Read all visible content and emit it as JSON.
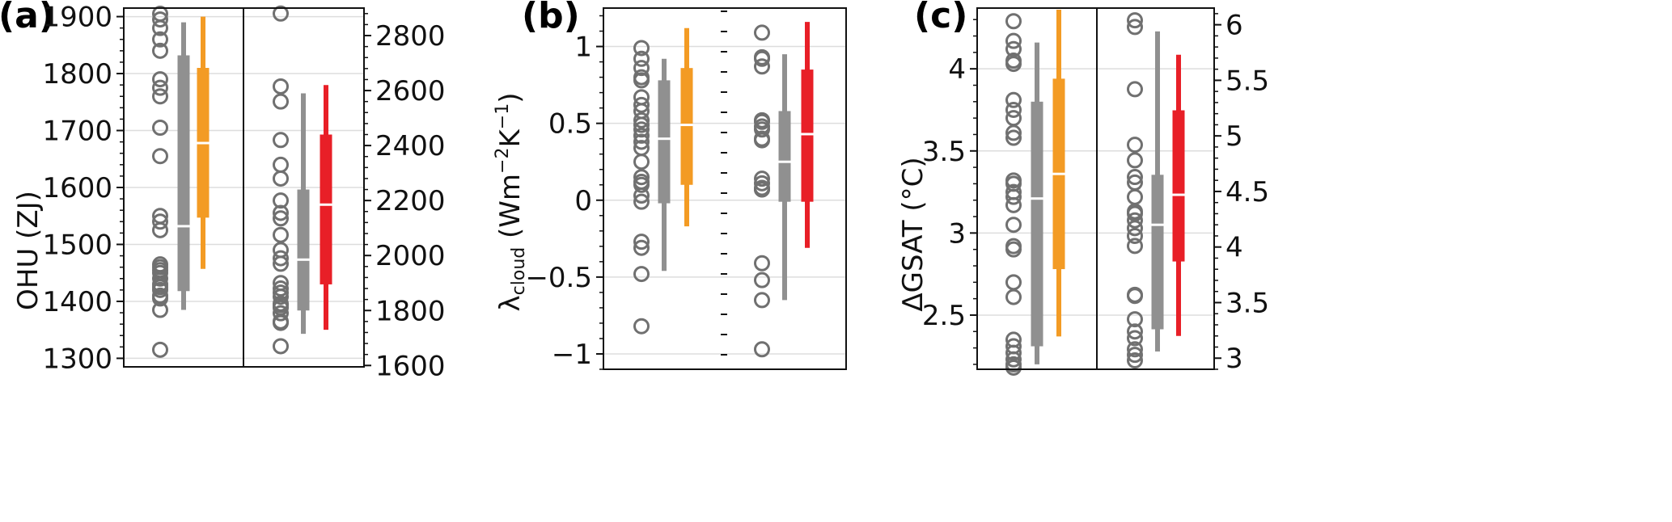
{
  "chart_data": [
    {
      "type": "box",
      "panel_label": "(a)",
      "ylabel": "OHU (ZJ)",
      "left_axis": {
        "ylim": [
          1285,
          1915
        ],
        "ticks": [
          1300,
          1400,
          1500,
          1600,
          1700,
          1800,
          1900
        ],
        "labels": [
          "1300",
          "1400",
          "1500",
          "1600",
          "1700",
          "1800",
          "1900"
        ]
      },
      "right_axis": {
        "ylim": [
          1595,
          2900
        ],
        "ticks": [
          1600,
          1800,
          2000,
          2200,
          2400,
          2600,
          2800
        ],
        "labels": [
          "1600",
          "1800",
          "2000",
          "2200",
          "2400",
          "2600",
          "2800"
        ]
      },
      "subpanels": [
        {
          "axis": "left",
          "points": [
            1905,
            1895,
            1880,
            1860,
            1840,
            1790,
            1775,
            1760,
            1705,
            1655,
            1550,
            1540,
            1525,
            1465,
            1460,
            1455,
            1450,
            1440,
            1430,
            1425,
            1420,
            1410,
            1405,
            1385,
            1315
          ],
          "boxes": [
            {
              "color": "#909090",
              "whisker": [
                1385,
                1890
              ],
              "box": [
                1418,
                1832
              ],
              "median": 1532
            },
            {
              "color": "#f39b24",
              "whisker": [
                1457,
                1900
              ],
              "box": [
                1547,
                1810
              ],
              "median": 1678
            }
          ]
        },
        {
          "axis": "right",
          "points": [
            2880,
            2615,
            2560,
            2420,
            2330,
            2280,
            2200,
            2155,
            2135,
            2075,
            2020,
            1990,
            1970,
            1900,
            1880,
            1865,
            1850,
            1825,
            1820,
            1810,
            1790,
            1760,
            1755,
            1670
          ],
          "boxes": [
            {
              "color": "#909090",
              "whisker": [
                1715,
                2590
              ],
              "box": [
                1800,
                2240
              ],
              "median": 1985
            },
            {
              "color": "#e81f27",
              "whisker": [
                1730,
                2620
              ],
              "box": [
                1895,
                2440
              ],
              "median": 2185
            }
          ]
        }
      ]
    },
    {
      "type": "box",
      "panel_label": "(b)",
      "ylabel": "λcloud (Wm⁻²K⁻¹)",
      "ylabel_parts": {
        "symbol": "λ",
        "sub": "cloud",
        "unit_a": " (Wm",
        "sup_a": "−2",
        "unit_b": "K",
        "sup_b": "−1",
        "unit_c": ")"
      },
      "left_axis": {
        "ylim": [
          -1.1,
          1.25
        ],
        "ticks": [
          -1,
          -0.5,
          0,
          0.5,
          1
        ],
        "labels": [
          "−1",
          "−0.5",
          "0",
          "0.5",
          "1"
        ]
      },
      "subpanels": [
        {
          "axis": "left",
          "points": [
            0.99,
            0.92,
            0.86,
            0.8,
            0.78,
            0.67,
            0.62,
            0.58,
            0.52,
            0.49,
            0.46,
            0.42,
            0.38,
            0.34,
            0.25,
            0.15,
            0.12,
            0.1,
            0.03,
            -0.01,
            -0.27,
            -0.31,
            -0.48,
            -0.82
          ],
          "boxes": [
            {
              "color": "#909090",
              "whisker": [
                -0.46,
                0.92
              ],
              "box": [
                -0.02,
                0.78
              ],
              "median": 0.4
            },
            {
              "color": "#f39b24",
              "whisker": [
                -0.17,
                1.12
              ],
              "box": [
                0.1,
                0.86
              ],
              "median": 0.49
            }
          ]
        },
        {
          "axis": "left",
          "points": [
            1.09,
            0.93,
            0.92,
            0.87,
            0.52,
            0.51,
            0.48,
            0.46,
            0.4,
            0.39,
            0.14,
            0.11,
            0.08,
            0.07,
            0.07,
            -0.41,
            -0.52,
            -0.65,
            -0.97
          ],
          "boxes": [
            {
              "color": "#909090",
              "whisker": [
                -0.65,
                0.95
              ],
              "box": [
                -0.01,
                0.58
              ],
              "median": 0.25
            },
            {
              "color": "#e81f27",
              "whisker": [
                -0.31,
                1.16
              ],
              "box": [
                -0.01,
                0.85
              ],
              "median": 0.43
            }
          ]
        }
      ]
    },
    {
      "type": "box",
      "panel_label": "(c)",
      "ylabel": "ΔGSAT (°C)",
      "left_axis": {
        "ylim": [
          2.17,
          4.37
        ],
        "ticks": [
          2.5,
          3,
          3.5,
          4
        ],
        "labels": [
          "2.5",
          "3",
          "3.5",
          "4"
        ]
      },
      "right_axis": {
        "ylim": [
          2.9,
          6.15
        ],
        "ticks": [
          3,
          3.5,
          4,
          4.5,
          5,
          5.5,
          6
        ],
        "labels": [
          "3",
          "3.5",
          "4",
          "4.5",
          "5",
          "5.5",
          "6"
        ]
      },
      "subpanels": [
        {
          "axis": "left",
          "points": [
            4.29,
            4.17,
            4.12,
            4.05,
            4.03,
            3.81,
            3.75,
            3.7,
            3.61,
            3.58,
            3.32,
            3.3,
            3.25,
            3.22,
            3.17,
            3.05,
            2.92,
            2.9,
            2.7,
            2.61,
            2.35,
            2.31,
            2.27,
            2.23,
            2.2,
            2.18
          ],
          "boxes": [
            {
              "color": "#909090",
              "whisker": [
                2.2,
                4.16
              ],
              "box": [
                2.31,
                3.8
              ],
              "median": 3.21
            },
            {
              "color": "#f39b24",
              "whisker": [
                2.37,
                4.36
              ],
              "box": [
                2.78,
                3.94
              ],
              "median": 3.36
            }
          ]
        },
        {
          "axis": "right",
          "points": [
            6.04,
            5.98,
            5.42,
            4.92,
            4.78,
            4.63,
            4.58,
            4.45,
            4.32,
            4.3,
            4.24,
            4.17,
            4.1,
            4.01,
            3.57,
            3.56,
            3.35,
            3.24,
            3.18,
            3.08,
            3.03,
            2.98
          ],
          "boxes": [
            {
              "color": "#909090",
              "whisker": [
                3.06,
                5.94
              ],
              "box": [
                3.26,
                4.65
              ],
              "median": 4.2
            },
            {
              "color": "#e81f27",
              "whisker": [
                3.2,
                5.73
              ],
              "box": [
                3.87,
                5.23
              ],
              "median": 4.47
            }
          ]
        }
      ]
    }
  ]
}
